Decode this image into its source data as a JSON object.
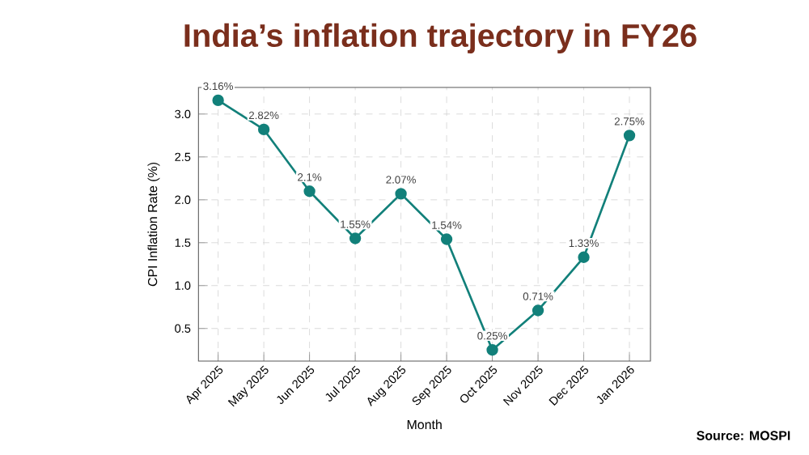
{
  "chart_data": {
    "type": "line",
    "title": "India’s inflation trajectory in FY26",
    "xlabel": "Month",
    "ylabel": "CPI Inflation Rate (%)",
    "categories": [
      "Apr 2025",
      "May 2025",
      "Jun 2025",
      "Jul 2025",
      "Aug 2025",
      "Sep 2025",
      "Oct 2025",
      "Nov 2025",
      "Dec 2025",
      "Jan 2026"
    ],
    "series": [
      {
        "color": "#12807a",
        "values": [
          3.16,
          2.82,
          2.1,
          1.55,
          2.07,
          1.54,
          0.25,
          0.71,
          1.33,
          2.75
        ],
        "value_labels": [
          "3.16%",
          "2.82%",
          "2.1%",
          "1.55%",
          "2.07%",
          "1.54%",
          "0.25%",
          "0.71%",
          "1.33%",
          "2.75%"
        ]
      }
    ],
    "ylim": [
      0.12,
      3.31
    ],
    "yticks": [
      0.5,
      {
        "value": 1,
        "label": "1.0"
      },
      1.5,
      {
        "value": 2,
        "label": "2.0"
      },
      2.5,
      {
        "value": 3,
        "label": "3.0"
      }
    ],
    "grid": true,
    "marker": "circle",
    "line_style": "solid",
    "annotations": [
      "Source: MOSPI"
    ]
  }
}
